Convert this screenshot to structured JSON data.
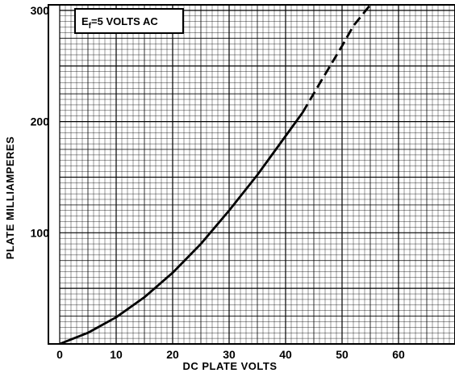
{
  "chart_data": {
    "type": "line",
    "title": "",
    "xlabel": "DC PLATE VOLTS",
    "ylabel": "PLATE MILLIAMPERES",
    "xlim": [
      -2,
      70
    ],
    "ylim": [
      0,
      305
    ],
    "x_ticks": [
      0,
      10,
      20,
      30,
      40,
      50,
      60
    ],
    "y_ticks": [
      100,
      200,
      300
    ],
    "grid": true,
    "annotation": {
      "symbol": "E",
      "subscript": "f",
      "text": "=5 VOLTS AC"
    },
    "series": [
      {
        "style": "solid",
        "x": [
          0,
          5,
          10,
          15,
          20,
          25,
          30,
          35,
          40,
          43
        ],
        "y": [
          0,
          10,
          24,
          42,
          64,
          90,
          120,
          152,
          187,
          208
        ]
      },
      {
        "style": "dashed",
        "x": [
          43,
          46,
          50,
          52,
          55
        ],
        "y": [
          208,
          234,
          268,
          286,
          305
        ]
      }
    ]
  }
}
